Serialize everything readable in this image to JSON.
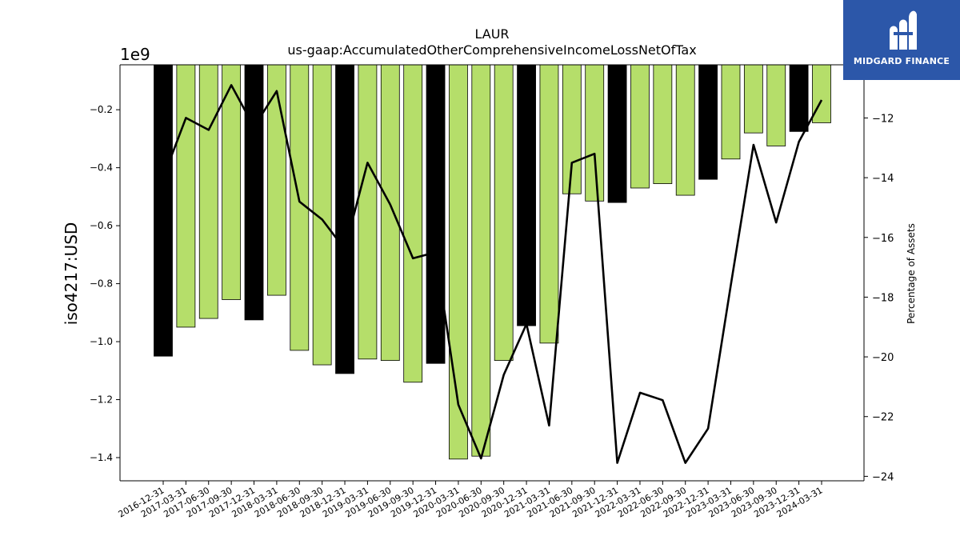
{
  "brand": {
    "name": "MIDGARD FINANCE",
    "bg_color": "#2c57a9"
  },
  "chart_data": {
    "type": "bar",
    "title": "LAUR",
    "subtitle": "us-gaap:AccumulatedOtherComprehensiveIncomeLossNetOfTax",
    "ylabel": "iso4217:USD",
    "y_multiplier_label": "1e9",
    "y2label": "Percentage of Assets",
    "ylim": [
      -1.48,
      -0.045
    ],
    "y2lim": [
      -24.15,
      -10.22
    ],
    "yticks": [
      -1.4,
      -1.2,
      -1.0,
      -0.8,
      -0.6,
      -0.4,
      -0.2
    ],
    "yticklabels": [
      "−1.4",
      "−1.2",
      "−1.0",
      "−0.8",
      "−0.6",
      "−0.4",
      "−0.2"
    ],
    "y2ticks": [
      -24,
      -22,
      -20,
      -18,
      -16,
      -14,
      -12
    ],
    "y2ticklabels": [
      "−24",
      "−22",
      "−20",
      "−18",
      "−16",
      "−14",
      "−12"
    ],
    "categories": [
      "2016-12-31",
      "2017-03-31",
      "2017-06-30",
      "2017-09-30",
      "2017-12-31",
      "2018-03-31",
      "2018-06-30",
      "2018-09-30",
      "2018-12-31",
      "2019-03-31",
      "2019-06-30",
      "2019-09-30",
      "2019-12-31",
      "2020-03-31",
      "2020-06-30",
      "2020-09-30",
      "2020-12-31",
      "2021-03-31",
      "2021-06-30",
      "2021-09-30",
      "2021-12-31",
      "2022-03-31",
      "2022-06-30",
      "2022-09-30",
      "2022-12-31",
      "2023-03-31",
      "2023-06-30",
      "2023-09-30",
      "2023-12-31",
      "2024-03-31"
    ],
    "series": [
      {
        "kind": "bar",
        "axis": "left",
        "values": [
          -1.05,
          -0.95,
          -0.92,
          -0.855,
          -0.925,
          -0.84,
          -1.03,
          -1.08,
          -1.11,
          -1.06,
          -1.065,
          -1.14,
          -1.075,
          -1.405,
          -1.395,
          -1.065,
          -0.945,
          -1.005,
          -0.49,
          -0.515,
          -0.52,
          -0.47,
          -0.455,
          -0.495,
          -0.44,
          -0.37,
          -0.28,
          -0.325,
          -0.275,
          -0.245
        ],
        "colors": [
          "#000000",
          "#b5de6a",
          "#b5de6a",
          "#b5de6a",
          "#000000",
          "#b5de6a",
          "#b5de6a",
          "#b5de6a",
          "#000000",
          "#b5de6a",
          "#b5de6a",
          "#b5de6a",
          "#000000",
          "#b5de6a",
          "#b5de6a",
          "#b5de6a",
          "#000000",
          "#b5de6a",
          "#b5de6a",
          "#b5de6a",
          "#000000",
          "#b5de6a",
          "#b5de6a",
          "#b5de6a",
          "#000000",
          "#b5de6a",
          "#b5de6a",
          "#b5de6a",
          "#000000",
          "#b5de6a"
        ]
      },
      {
        "kind": "line",
        "axis": "right",
        "color": "#000000",
        "values": [
          -14.0,
          -12.0,
          -12.4,
          -10.9,
          -12.3,
          -11.1,
          -14.8,
          -15.4,
          -16.4,
          -13.5,
          -14.9,
          -16.7,
          -16.5,
          -21.6,
          -23.4,
          -20.6,
          -18.9,
          -22.3,
          -13.5,
          -13.2,
          -23.55,
          -21.2,
          -21.45,
          -23.55,
          -22.4,
          -17.6,
          -12.9,
          -15.5,
          -12.8,
          -11.4
        ]
      }
    ],
    "grid": false,
    "legend": "none"
  }
}
